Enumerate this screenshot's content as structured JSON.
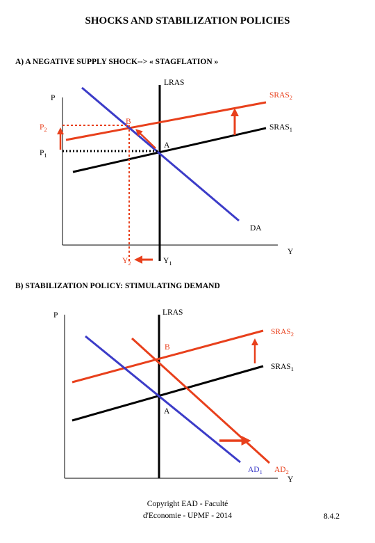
{
  "title": "SHOCKS AND STABILIZATION POLICIES",
  "colors": {
    "black": "#000000",
    "red": "#e8401c",
    "blue": "#3c3cc8"
  },
  "panel_a": {
    "heading": "A) A NEGATIVE SUPPLY SHOCK--> « STAGFLATION »",
    "y_axis": "P",
    "x_axis": "Y",
    "lras": "LRAS",
    "sras2": {
      "main": "SRAS",
      "sub": "2"
    },
    "sras1": {
      "main": "SRAS",
      "sub": "1"
    },
    "demand": "DA",
    "point_a": "A",
    "point_b": "B",
    "p2": {
      "main": "P",
      "sub": "2"
    },
    "p1": {
      "main": "P",
      "sub": "1"
    },
    "y2": {
      "main": "Y",
      "sub": "2"
    },
    "y1": {
      "main": "Y",
      "sub": "1"
    }
  },
  "panel_b": {
    "heading": "B) STABILIZATION POLICY: STIMULATING DEMAND",
    "y_axis": "P",
    "x_axis": "Y",
    "lras": "LRAS",
    "sras2": {
      "main": "SRAS",
      "sub": "2"
    },
    "sras1": {
      "main": "SRAS",
      "sub": "1"
    },
    "point_a": "A",
    "point_b": "B",
    "ad1": {
      "main": "AD",
      "sub": "1"
    },
    "ad2": {
      "main": "AD",
      "sub": "2"
    }
  },
  "footer": {
    "line1": "Copyright EAD - Faculté",
    "line2": "d'Economie - UPMF - 2014"
  },
  "page_number": "8.4.2"
}
